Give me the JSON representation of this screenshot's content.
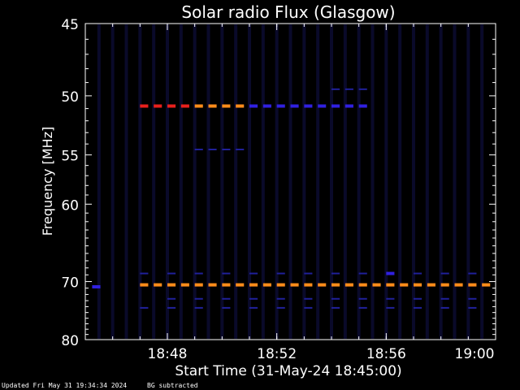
{
  "chart_data": {
    "type": "heatmap",
    "title": "Solar radio Flux (Glasgow)",
    "xlabel": "Start Time (31-May-24 18:45:00)",
    "ylabel": "Frequency [MHz]",
    "x_range": [
      "18:45:00",
      "19:00:00"
    ],
    "x_ticks": [
      {
        "t": "18:48",
        "label": "18:48"
      },
      {
        "t": "18:52",
        "label": "18:52"
      },
      {
        "t": "18:56",
        "label": "18:56"
      },
      {
        "t": "19:00",
        "label": "19:00"
      }
    ],
    "y_range_mhz": [
      45,
      80
    ],
    "y_scale": "reciprocal",
    "y_ticks": [
      45,
      50,
      55,
      60,
      70,
      80
    ],
    "background": "#000000",
    "frame_color": "#ffffff",
    "series": [
      {
        "freq_mhz": 50.8,
        "step_min": 0.5,
        "values": [
          {
            "t": "18:47:00",
            "level": "red"
          },
          {
            "t": "18:47:30",
            "level": "red"
          },
          {
            "t": "18:48:00",
            "level": "red"
          },
          {
            "t": "18:48:30",
            "level": "red"
          },
          {
            "t": "18:49:00",
            "level": "orange"
          },
          {
            "t": "18:49:30",
            "level": "orange"
          },
          {
            "t": "18:50:00",
            "level": "orange"
          },
          {
            "t": "18:50:30",
            "level": "orange"
          },
          {
            "t": "18:51:00",
            "level": "blue"
          },
          {
            "t": "18:51:30",
            "level": "blue"
          },
          {
            "t": "18:52:00",
            "level": "blue"
          },
          {
            "t": "18:52:30",
            "level": "blue"
          },
          {
            "t": "18:53:00",
            "level": "blue"
          },
          {
            "t": "18:53:30",
            "level": "blue"
          },
          {
            "t": "18:54:00",
            "level": "blue"
          },
          {
            "t": "18:54:30",
            "level": "blue"
          },
          {
            "t": "18:55:00",
            "level": "blue"
          }
        ]
      },
      {
        "freq_mhz": 70.5,
        "step_min": 0.5,
        "values": [
          {
            "t": "18:47:00",
            "level": "orange"
          },
          {
            "t": "18:47:30",
            "level": "orange"
          },
          {
            "t": "18:48:00",
            "level": "orange"
          },
          {
            "t": "18:48:30",
            "level": "orange"
          },
          {
            "t": "18:49:00",
            "level": "orange"
          },
          {
            "t": "18:49:30",
            "level": "orange"
          },
          {
            "t": "18:50:00",
            "level": "orange"
          },
          {
            "t": "18:50:30",
            "level": "orange"
          },
          {
            "t": "18:51:00",
            "level": "orange"
          },
          {
            "t": "18:51:30",
            "level": "orange"
          },
          {
            "t": "18:52:00",
            "level": "orange"
          },
          {
            "t": "18:52:30",
            "level": "orange"
          },
          {
            "t": "18:53:00",
            "level": "orange"
          },
          {
            "t": "18:53:30",
            "level": "orange"
          },
          {
            "t": "18:54:00",
            "level": "orange"
          },
          {
            "t": "18:54:30",
            "level": "orange"
          },
          {
            "t": "18:55:00",
            "level": "orange"
          },
          {
            "t": "18:55:30",
            "level": "orange"
          },
          {
            "t": "18:56:00",
            "level": "orange"
          },
          {
            "t": "18:56:30",
            "level": "orange"
          },
          {
            "t": "18:57:00",
            "level": "orange"
          },
          {
            "t": "18:57:30",
            "level": "orange"
          },
          {
            "t": "18:58:00",
            "level": "orange"
          },
          {
            "t": "18:58:30",
            "level": "orange"
          },
          {
            "t": "18:59:00",
            "level": "orange"
          },
          {
            "t": "18:59:30",
            "level": "orange"
          }
        ]
      },
      {
        "freq_mhz": 54.5,
        "step_min": 0.5,
        "values": [
          {
            "t": "18:49:00",
            "level": "faint"
          },
          {
            "t": "18:49:30",
            "level": "faint"
          },
          {
            "t": "18:50:00",
            "level": "faint"
          },
          {
            "t": "18:50:30",
            "level": "faint"
          }
        ]
      },
      {
        "freq_mhz": 68.8,
        "step_min": 0.5,
        "values": [
          {
            "t": "18:47:00",
            "level": "faint"
          },
          {
            "t": "18:48:00",
            "level": "faint"
          },
          {
            "t": "18:49:00",
            "level": "faint"
          },
          {
            "t": "18:50:00",
            "level": "faint"
          },
          {
            "t": "18:51:00",
            "level": "faint"
          },
          {
            "t": "18:52:00",
            "level": "faint"
          },
          {
            "t": "18:53:00",
            "level": "faint"
          },
          {
            "t": "18:54:00",
            "level": "faint"
          },
          {
            "t": "18:55:00",
            "level": "faint"
          },
          {
            "t": "18:56:00",
            "level": "blue"
          },
          {
            "t": "18:57:00",
            "level": "faint"
          },
          {
            "t": "18:58:00",
            "level": "faint"
          },
          {
            "t": "18:59:00",
            "level": "faint"
          }
        ]
      },
      {
        "freq_mhz": 72.7,
        "step_min": 0.5,
        "values": [
          {
            "t": "18:48:00",
            "level": "faint"
          },
          {
            "t": "18:49:00",
            "level": "faint"
          },
          {
            "t": "18:50:00",
            "level": "faint"
          },
          {
            "t": "18:51:00",
            "level": "faint"
          },
          {
            "t": "18:52:00",
            "level": "faint"
          },
          {
            "t": "18:53:00",
            "level": "faint"
          },
          {
            "t": "18:54:00",
            "level": "faint"
          },
          {
            "t": "18:55:00",
            "level": "faint"
          },
          {
            "t": "18:56:00",
            "level": "faint"
          },
          {
            "t": "18:57:00",
            "level": "faint"
          },
          {
            "t": "18:58:00",
            "level": "faint"
          },
          {
            "t": "18:59:00",
            "level": "faint"
          }
        ]
      },
      {
        "freq_mhz": 74.2,
        "step_min": 0.5,
        "values": [
          {
            "t": "18:47:00",
            "level": "faint"
          },
          {
            "t": "18:48:00",
            "level": "faint"
          },
          {
            "t": "18:49:00",
            "level": "faint"
          },
          {
            "t": "18:50:00",
            "level": "faint"
          },
          {
            "t": "18:51:00",
            "level": "faint"
          },
          {
            "t": "18:52:00",
            "level": "faint"
          },
          {
            "t": "18:53:00",
            "level": "faint"
          },
          {
            "t": "18:54:00",
            "level": "faint"
          },
          {
            "t": "18:55:00",
            "level": "faint"
          },
          {
            "t": "18:56:00",
            "level": "faint"
          },
          {
            "t": "18:57:00",
            "level": "faint"
          },
          {
            "t": "18:58:00",
            "level": "faint"
          },
          {
            "t": "18:59:00",
            "level": "faint"
          }
        ]
      },
      {
        "freq_mhz": 49.5,
        "step_min": 0.5,
        "values": [
          {
            "t": "18:54:00",
            "level": "faint"
          },
          {
            "t": "18:54:30",
            "level": "faint"
          },
          {
            "t": "18:55:00",
            "level": "faint"
          }
        ]
      },
      {
        "freq_mhz": 70.8,
        "step_min": 0.5,
        "values": [
          {
            "t": "18:45:15",
            "level": "blue"
          }
        ]
      }
    ],
    "level_colors": {
      "red": "#e8201c",
      "orange": "#ff8c1a",
      "blue": "#3020e0",
      "faint": "#20209a"
    },
    "time_columns": [
      "18:45:30",
      "18:46:00",
      "18:46:30",
      "18:47:00",
      "18:47:30",
      "18:48:00",
      "18:48:30",
      "18:49:00",
      "18:49:30",
      "18:50:00",
      "18:50:30",
      "18:51:00",
      "18:51:30",
      "18:52:00",
      "18:52:30",
      "18:53:00",
      "18:53:30",
      "18:54:00",
      "18:54:30",
      "18:55:00",
      "18:55:30",
      "18:56:00",
      "18:56:30",
      "18:57:00",
      "18:57:30",
      "18:58:00",
      "18:58:30",
      "18:59:00",
      "18:59:30"
    ],
    "column_color": "#0a0a2a"
  },
  "footer": {
    "updated": "Updated Fri May 31 19:34:34 2024",
    "bg_note": "BG subtracted"
  }
}
